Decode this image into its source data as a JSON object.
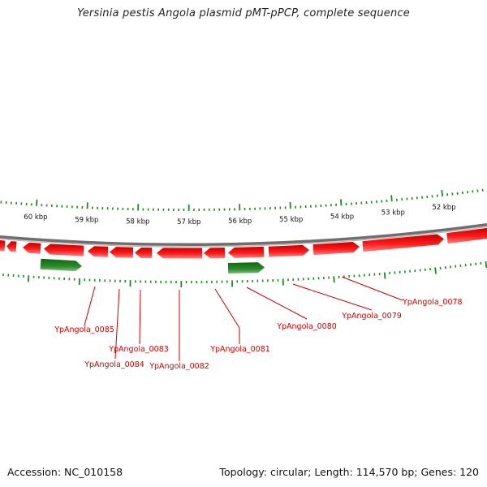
{
  "title": "Yersinia pestis Angola plasmid pMT-pPCP, complete sequence",
  "accession": "Accession: NC_010158",
  "summary": "Topology: circular; Length: 114,570 bp; Genes: 120",
  "colors": {
    "forward_gene": "#ee1111",
    "reverse_gene": "#228822",
    "tick": "#228822",
    "backbone": "#888888",
    "label": "#cc0000"
  },
  "ruler": {
    "outer_labels": [
      "60 kbp",
      "59 kbp",
      "58 kbp",
      "57 kbp",
      "56 kbp",
      "55 kbp",
      "54 kbp",
      "53 kbp",
      "52 kbp"
    ]
  },
  "gene_labels": [
    "YpAngola_0078",
    "YpAngola_0079",
    "YpAngola_0080",
    "YpAngola_0081",
    "YpAngola_0082",
    "YpAngola_0083",
    "YpAngola_0084",
    "YpAngola_0085"
  ]
}
